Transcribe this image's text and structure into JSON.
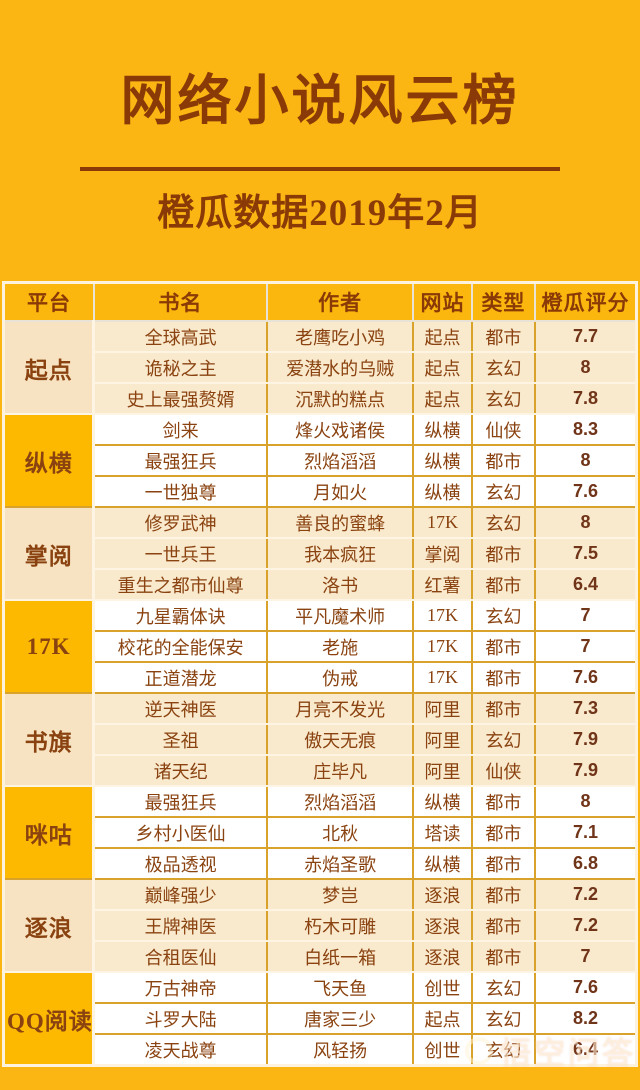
{
  "page": {
    "title": "网络小说风云榜",
    "subtitle": "橙瓜数据2019年2月"
  },
  "colors": {
    "background": "#fcb613",
    "text_brown": "#8a3a06",
    "cream_row": "#f9e9cd",
    "gold_cell": "#fdb900",
    "gold_border": "#d9a22b"
  },
  "watermark": {
    "text": "悟空问答"
  },
  "table": {
    "headers": [
      "平台",
      "书名",
      "作者",
      "网站",
      "类型",
      "橙瓜评分"
    ],
    "groups": [
      {
        "platform": "起点",
        "rows": [
          [
            "全球高武",
            "老鹰吃小鸡",
            "起点",
            "都市",
            "7.7"
          ],
          [
            "诡秘之主",
            "爱潜水的乌贼",
            "起点",
            "玄幻",
            "8"
          ],
          [
            "史上最强赘婿",
            "沉默的糕点",
            "起点",
            "玄幻",
            "7.8"
          ]
        ]
      },
      {
        "platform": "纵横",
        "rows": [
          [
            "剑来",
            "烽火戏诸侯",
            "纵横",
            "仙侠",
            "8.3"
          ],
          [
            "最强狂兵",
            "烈焰滔滔",
            "纵横",
            "都市",
            "8"
          ],
          [
            "一世独尊",
            "月如火",
            "纵横",
            "玄幻",
            "7.6"
          ]
        ]
      },
      {
        "platform": "掌阅",
        "rows": [
          [
            "修罗武神",
            "善良的蜜蜂",
            "17K",
            "玄幻",
            "8"
          ],
          [
            "一世兵王",
            "我本疯狂",
            "掌阅",
            "都市",
            "7.5"
          ],
          [
            "重生之都市仙尊",
            "洛书",
            "红薯",
            "都市",
            "6.4"
          ]
        ]
      },
      {
        "platform": "17K",
        "rows": [
          [
            "九星霸体诀",
            "平凡魔术师",
            "17K",
            "玄幻",
            "7"
          ],
          [
            "校花的全能保安",
            "老施",
            "17K",
            "都市",
            "7"
          ],
          [
            "正道潜龙",
            "伪戒",
            "17K",
            "都市",
            "7.6"
          ]
        ]
      },
      {
        "platform": "书旗",
        "rows": [
          [
            "逆天神医",
            "月亮不发光",
            "阿里",
            "都市",
            "7.3"
          ],
          [
            "圣祖",
            "傲天无痕",
            "阿里",
            "玄幻",
            "7.9"
          ],
          [
            "诸天纪",
            "庄毕凡",
            "阿里",
            "仙侠",
            "7.9"
          ]
        ]
      },
      {
        "platform": "咪咕",
        "rows": [
          [
            "最强狂兵",
            "烈焰滔滔",
            "纵横",
            "都市",
            "8"
          ],
          [
            "乡村小医仙",
            "北秋",
            "塔读",
            "都市",
            "7.1"
          ],
          [
            "极品透视",
            "赤焰圣歌",
            "纵横",
            "都市",
            "6.8"
          ]
        ]
      },
      {
        "platform": "逐浪",
        "rows": [
          [
            "巅峰强少",
            "梦岂",
            "逐浪",
            "都市",
            "7.2"
          ],
          [
            "王牌神医",
            "朽木可雕",
            "逐浪",
            "都市",
            "7.2"
          ],
          [
            "合租医仙",
            "白纸一箱",
            "逐浪",
            "都市",
            "7"
          ]
        ]
      },
      {
        "platform": "QQ阅读",
        "rows": [
          [
            "万古神帝",
            "飞天鱼",
            "创世",
            "玄幻",
            "7.6"
          ],
          [
            "斗罗大陆",
            "唐家三少",
            "起点",
            "玄幻",
            "8.2"
          ],
          [
            "凌天战尊",
            "风轻扬",
            "创世",
            "玄幻",
            "6.4"
          ]
        ]
      }
    ]
  },
  "chart_data": {
    "type": "table",
    "title": "网络小说风云榜",
    "subtitle": "橙瓜数据2019年2月",
    "columns": [
      "平台",
      "书名",
      "作者",
      "网站",
      "类型",
      "橙瓜评分"
    ],
    "rows": [
      [
        "起点",
        "全球高武",
        "老鹰吃小鸡",
        "起点",
        "都市",
        7.7
      ],
      [
        "起点",
        "诡秘之主",
        "爱潜水的乌贼",
        "起点",
        "玄幻",
        8
      ],
      [
        "起点",
        "史上最强赘婿",
        "沉默的糕点",
        "起点",
        "玄幻",
        7.8
      ],
      [
        "纵横",
        "剑来",
        "烽火戏诸侯",
        "纵横",
        "仙侠",
        8.3
      ],
      [
        "纵横",
        "最强狂兵",
        "烈焰滔滔",
        "纵横",
        "都市",
        8
      ],
      [
        "纵横",
        "一世独尊",
        "月如火",
        "纵横",
        "玄幻",
        7.6
      ],
      [
        "掌阅",
        "修罗武神",
        "善良的蜜蜂",
        "17K",
        "玄幻",
        8
      ],
      [
        "掌阅",
        "一世兵王",
        "我本疯狂",
        "掌阅",
        "都市",
        7.5
      ],
      [
        "掌阅",
        "重生之都市仙尊",
        "洛书",
        "红薯",
        "都市",
        6.4
      ],
      [
        "17K",
        "九星霸体诀",
        "平凡魔术师",
        "17K",
        "玄幻",
        7
      ],
      [
        "17K",
        "校花的全能保安",
        "老施",
        "17K",
        "都市",
        7
      ],
      [
        "17K",
        "正道潜龙",
        "伪戒",
        "17K",
        "都市",
        7.6
      ],
      [
        "书旗",
        "逆天神医",
        "月亮不发光",
        "阿里",
        "都市",
        7.3
      ],
      [
        "书旗",
        "圣祖",
        "傲天无痕",
        "阿里",
        "玄幻",
        7.9
      ],
      [
        "书旗",
        "诸天纪",
        "庄毕凡",
        "阿里",
        "仙侠",
        7.9
      ],
      [
        "咪咕",
        "最强狂兵",
        "烈焰滔滔",
        "纵横",
        "都市",
        8
      ],
      [
        "咪咕",
        "乡村小医仙",
        "北秋",
        "塔读",
        "都市",
        7.1
      ],
      [
        "咪咕",
        "极品透视",
        "赤焰圣歌",
        "纵横",
        "都市",
        6.8
      ],
      [
        "逐浪",
        "巅峰强少",
        "梦岂",
        "逐浪",
        "都市",
        7.2
      ],
      [
        "逐浪",
        "王牌神医",
        "朽木可雕",
        "逐浪",
        "都市",
        7.2
      ],
      [
        "逐浪",
        "合租医仙",
        "白纸一箱",
        "逐浪",
        "都市",
        7
      ],
      [
        "QQ阅读",
        "万古神帝",
        "飞天鱼",
        "创世",
        "玄幻",
        7.6
      ],
      [
        "QQ阅读",
        "斗罗大陆",
        "唐家三少",
        "起点",
        "玄幻",
        8.2
      ],
      [
        "QQ阅读",
        "凌天战尊",
        "风轻扬",
        "创世",
        "玄幻",
        6.4
      ]
    ]
  }
}
